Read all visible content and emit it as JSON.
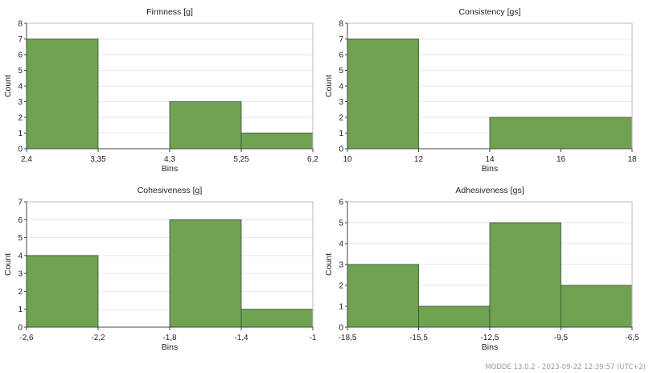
{
  "footer": "MODDE 13.0.2 - 2023-09-22 12:39:57 (UTC+2)",
  "colors": {
    "bar_fill": "#6fa352",
    "bar_stroke": "#3c4a33",
    "grid": "#e6e6e6",
    "axis": "#444444"
  },
  "chart_data": [
    {
      "type": "bar",
      "title": "Firmness [g]",
      "xlabel": "Bins",
      "ylabel": "Count",
      "xticks": [
        "2,4",
        "3,35",
        "4,3",
        "5,25",
        "6,2"
      ],
      "bins": [
        [
          2.4,
          3.35
        ],
        [
          3.35,
          4.3
        ],
        [
          4.3,
          5.25
        ],
        [
          5.25,
          6.2
        ]
      ],
      "values": [
        7,
        0,
        3,
        1
      ],
      "xlim": [
        2.4,
        6.2
      ],
      "ylim": [
        0,
        8
      ],
      "yticks": [
        0,
        1,
        2,
        3,
        4,
        5,
        6,
        7,
        8
      ],
      "grid": true
    },
    {
      "type": "bar",
      "title": "Consistency [gs]",
      "xlabel": "Bins",
      "ylabel": "Count",
      "xticks": [
        "10",
        "12",
        "14",
        "16",
        "18"
      ],
      "bins": [
        [
          10,
          12
        ],
        [
          12,
          14
        ],
        [
          14,
          18
        ]
      ],
      "values": [
        7,
        0,
        2
      ],
      "xlim": [
        10,
        18
      ],
      "ylim": [
        0,
        8
      ],
      "yticks": [
        0,
        1,
        2,
        3,
        4,
        5,
        6,
        7,
        8
      ],
      "grid": true
    },
    {
      "type": "bar",
      "title": "Cohesiveness [g]",
      "xlabel": "Bins",
      "ylabel": "Count",
      "xticks": [
        "-2,6",
        "-2,2",
        "-1,8",
        "-1,4",
        "-1"
      ],
      "bins": [
        [
          -2.6,
          -2.2
        ],
        [
          -2.2,
          -1.8
        ],
        [
          -1.8,
          -1.4
        ],
        [
          -1.4,
          -1.0
        ]
      ],
      "values": [
        4,
        0,
        6,
        1
      ],
      "xlim": [
        -2.6,
        -1.0
      ],
      "ylim": [
        0,
        7
      ],
      "yticks": [
        0,
        1,
        2,
        3,
        4,
        5,
        6,
        7
      ],
      "grid": true
    },
    {
      "type": "bar",
      "title": "Adhesiveness [gs]",
      "xlabel": "Bins",
      "ylabel": "Count",
      "xticks": [
        "-18,5",
        "-15,5",
        "-12,5",
        "-9,5",
        "-6,5"
      ],
      "bins": [
        [
          -18.5,
          -15.5
        ],
        [
          -15.5,
          -12.5
        ],
        [
          -12.5,
          -9.5
        ],
        [
          -9.5,
          -6.5
        ]
      ],
      "values": [
        3,
        1,
        5,
        2
      ],
      "xlim": [
        -18.5,
        -6.5
      ],
      "ylim": [
        0,
        6
      ],
      "yticks": [
        0,
        1,
        2,
        3,
        4,
        5,
        6
      ],
      "grid": true
    }
  ]
}
